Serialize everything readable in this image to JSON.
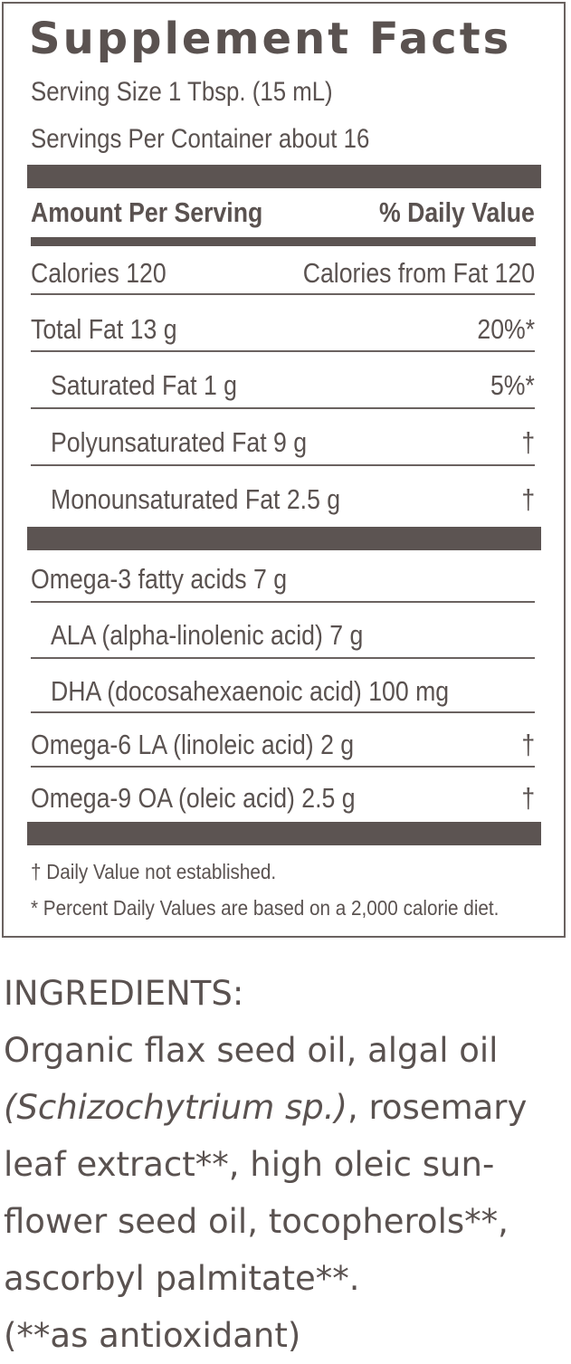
{
  "title": "Supplement Facts",
  "serving_size": "Serving Size 1 Tbsp. (15 mL)",
  "servings_per_container": "Servings Per Container about 16",
  "header": {
    "amount": "Amount Per Serving",
    "daily_value": "% Daily Value"
  },
  "calories": {
    "label": "Calories  120",
    "from_fat": "Calories from Fat 120"
  },
  "fats": [
    {
      "label": "Total Fat   13 g",
      "dv": "20%*"
    },
    {
      "label": "Saturated Fat   1 g",
      "dv": "5%*"
    },
    {
      "label": "Polyunsaturated Fat   9 g",
      "dv": "†"
    },
    {
      "label": "Monounsaturated Fat   2.5 g",
      "dv": "†"
    }
  ],
  "omegas": [
    {
      "label": "Omega-3 fatty acids   7 g",
      "dv": ""
    },
    {
      "label": "ALA (alpha-linolenic acid)   7 g",
      "dv": ""
    },
    {
      "label": "DHA (docosahexaenoic acid) 100 mg",
      "dv": ""
    },
    {
      "label": "Omega-6 LA (linoleic acid)   2 g",
      "dv": "†"
    },
    {
      "label": "Omega-9 OA (oleic acid)   2.5 g",
      "dv": "†"
    }
  ],
  "footnotes": {
    "dagger": "† Daily Value not established.",
    "percent": "* Percent Daily Values are based on a 2,000 calorie diet."
  },
  "ingredients": {
    "heading": "INGREDIENTS:",
    "line1": "Organic flax seed oil, algal oil",
    "line2_italic": "(Schizochytrium sp.)",
    "line2_rest": ", rosemary",
    "line3": "leaf extract**, high oleic sun-",
    "line4": "flower seed oil, tocopherols**,",
    "line5": "ascorbyl palmitate**.",
    "line6": "(**as antioxidant)"
  },
  "colors": {
    "text": "#5a5250",
    "bars": "#5c5452",
    "rules": "#6a6260"
  }
}
